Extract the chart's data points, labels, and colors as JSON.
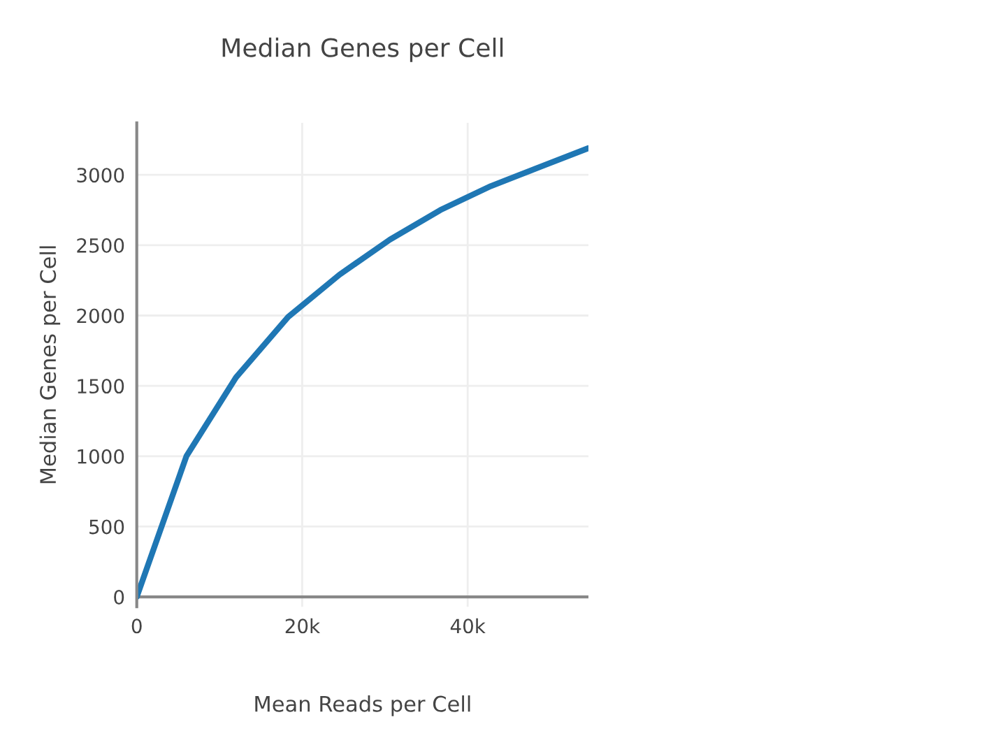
{
  "chart_data": {
    "type": "line",
    "title": "Median Genes per Cell",
    "xlabel": "Mean Reads per Cell",
    "ylabel": "Median Genes per Cell",
    "series": [
      {
        "color": "#1f77b4",
        "x": [
          0,
          6000,
          12000,
          18300,
          24500,
          30600,
          36700,
          42800,
          48900,
          54600
        ],
        "values": [
          0,
          1000,
          1560,
          1990,
          2290,
          2540,
          2750,
          2920,
          3060,
          3190
        ]
      }
    ],
    "xlim": [
      0,
      54600
    ],
    "xticks": [
      0,
      {
        "value": 20000,
        "label": "20k"
      },
      {
        "value": 40000,
        "label": "40k"
      }
    ],
    "ylim": [
      -70,
      3370
    ],
    "yticks": [
      0,
      500,
      1000,
      1500,
      2000,
      2500,
      3000
    ],
    "grid": true,
    "marker": "none",
    "line_style": "solid"
  }
}
